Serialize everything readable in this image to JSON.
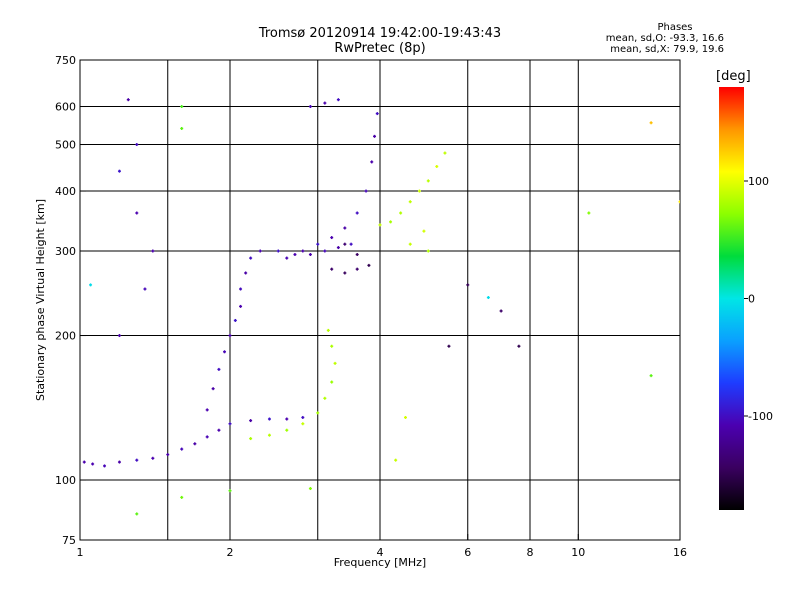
{
  "header": {
    "title_line1": "Tromsø 20120914 19:42:00-19:43:43",
    "title_line2": "RwPretec (8p)",
    "phase_title": "Phases",
    "phase_line_o": "mean, sd,O: -93.3, 16.6",
    "phase_line_x": "mean, sd,X:  79.9, 19.6"
  },
  "colorbar": {
    "unit": "deg",
    "ticks": [
      {
        "value": 100,
        "label": "100"
      },
      {
        "value": 0,
        "label": "0"
      },
      {
        "value": -100,
        "label": "-100"
      }
    ],
    "range": [
      -180,
      180
    ],
    "colors": [
      "#000000",
      "#3a0060",
      "#4b00b0",
      "#1e3cff",
      "#0aa0ff",
      "#00e6e6",
      "#00dc3c",
      "#8cff00",
      "#ffff00",
      "#ff9600",
      "#ff0000"
    ]
  },
  "chart_data": {
    "type": "scatter",
    "title": "Tromsø 20120914 19:42:00-19:43:43",
    "subtitle": "RwPretec (8p)",
    "xlabel": "Frequency [MHz]",
    "ylabel": "Stationary phase Virtual Height [km]",
    "xscale": "log",
    "yscale": "log",
    "xlim": [
      1,
      16
    ],
    "ylim": [
      75,
      750
    ],
    "xticks": [
      1,
      2,
      4,
      6,
      8,
      10,
      16
    ],
    "xtick_labels": [
      "1",
      "2",
      "4",
      "6",
      "8",
      "10",
      "16"
    ],
    "xgrid": [
      1.5,
      2,
      3,
      4,
      6,
      8,
      10
    ],
    "yticks": [
      75,
      100,
      200,
      300,
      400,
      500,
      600,
      750
    ],
    "ytick_labels": [
      "75",
      "100",
      "200",
      "300",
      "400",
      "500",
      "600",
      "750"
    ],
    "ygrid": [
      100,
      200,
      300,
      400,
      500,
      600
    ],
    "grid": true,
    "color_by": "phase_deg",
    "series": [
      {
        "values": [
          [
            1.02,
            109,
            -110
          ],
          [
            1.06,
            108,
            -108
          ],
          [
            1.12,
            107,
            -105
          ],
          [
            1.2,
            109,
            -112
          ],
          [
            1.3,
            110,
            -100
          ],
          [
            1.4,
            111,
            -108
          ],
          [
            1.5,
            113,
            -110
          ],
          [
            1.6,
            116,
            -104
          ],
          [
            1.7,
            119,
            -112
          ],
          [
            1.8,
            123,
            -106
          ],
          [
            1.9,
            127,
            -110
          ],
          [
            2.0,
            131,
            -100
          ],
          [
            2.2,
            133,
            -112
          ],
          [
            2.4,
            134,
            -96
          ],
          [
            2.6,
            134,
            -108
          ],
          [
            2.8,
            135,
            -100
          ]
        ]
      },
      {
        "values": [
          [
            1.8,
            140,
            -108
          ],
          [
            1.85,
            155,
            -112
          ],
          [
            1.9,
            170,
            -100
          ],
          [
            1.95,
            185,
            -105
          ],
          [
            2.0,
            200,
            -110
          ],
          [
            2.05,
            215,
            -96
          ],
          [
            2.1,
            230,
            -108
          ],
          [
            2.1,
            250,
            -102
          ],
          [
            2.15,
            270,
            -112
          ],
          [
            2.2,
            290,
            -100
          ],
          [
            2.3,
            300,
            -106
          ],
          [
            2.5,
            300,
            -98
          ],
          [
            2.7,
            295,
            -108
          ],
          [
            2.9,
            295,
            -110
          ],
          [
            3.1,
            300,
            -104
          ],
          [
            3.3,
            305,
            -112
          ],
          [
            3.5,
            310,
            -100
          ]
        ]
      },
      {
        "values": [
          [
            2.6,
            290,
            -106
          ],
          [
            2.8,
            300,
            -110
          ],
          [
            3.0,
            310,
            -96
          ],
          [
            3.2,
            320,
            -108
          ],
          [
            3.4,
            335,
            -112
          ],
          [
            3.6,
            360,
            -100
          ],
          [
            3.75,
            400,
            -104
          ],
          [
            3.85,
            460,
            -110
          ],
          [
            3.9,
            520,
            -112
          ],
          [
            3.95,
            580,
            -100
          ]
        ]
      },
      {
        "values": [
          [
            3.2,
            275,
            -140
          ],
          [
            3.4,
            270,
            -145
          ],
          [
            3.6,
            275,
            -138
          ],
          [
            3.8,
            280,
            -150
          ],
          [
            3.6,
            295,
            -142
          ],
          [
            3.4,
            310,
            -136
          ]
        ]
      },
      {
        "values": [
          [
            2.2,
            122,
            82
          ],
          [
            2.4,
            124,
            86
          ],
          [
            2.6,
            127,
            78
          ],
          [
            2.8,
            131,
            90
          ],
          [
            3.0,
            138,
            80
          ],
          [
            3.1,
            148,
            84
          ],
          [
            3.2,
            160,
            76
          ],
          [
            3.25,
            175,
            88
          ],
          [
            3.2,
            190,
            82
          ],
          [
            3.15,
            205,
            86
          ]
        ]
      },
      {
        "values": [
          [
            4.0,
            340,
            90
          ],
          [
            4.2,
            345,
            80
          ],
          [
            4.4,
            360,
            84
          ],
          [
            4.6,
            380,
            88
          ],
          [
            4.8,
            400,
            92
          ],
          [
            5.0,
            420,
            86
          ],
          [
            5.2,
            450,
            96
          ],
          [
            5.4,
            480,
            88
          ],
          [
            4.9,
            330,
            94
          ],
          [
            5.0,
            300,
            84
          ],
          [
            4.6,
            310,
            90
          ]
        ]
      },
      {
        "values": [
          [
            2.9,
            600,
            -105
          ],
          [
            3.1,
            610,
            -110
          ],
          [
            3.3,
            620,
            -100
          ],
          [
            1.25,
            620,
            -112
          ],
          [
            1.6,
            600,
            55
          ],
          [
            1.6,
            540,
            60
          ],
          [
            1.3,
            500,
            -102
          ],
          [
            1.2,
            440,
            -96
          ],
          [
            1.3,
            360,
            -108
          ],
          [
            1.4,
            300,
            -110
          ],
          [
            1.35,
            250,
            -104
          ],
          [
            1.2,
            200,
            -112
          ],
          [
            1.05,
            255,
            -5
          ],
          [
            1.3,
            85,
            60
          ],
          [
            1.6,
            92,
            65
          ],
          [
            2.0,
            95,
            60
          ],
          [
            2.9,
            96,
            70
          ],
          [
            4.3,
            110,
            90
          ],
          [
            4.5,
            135,
            95
          ],
          [
            5.5,
            190,
            -150
          ],
          [
            6.0,
            255,
            -148
          ],
          [
            6.6,
            240,
            -5
          ],
          [
            7.0,
            225,
            -140
          ],
          [
            7.6,
            190,
            -150
          ],
          [
            10.5,
            360,
            70
          ],
          [
            14.0,
            165,
            60
          ],
          [
            14.0,
            555,
            130
          ],
          [
            16,
            380,
            115
          ]
        ]
      }
    ]
  }
}
